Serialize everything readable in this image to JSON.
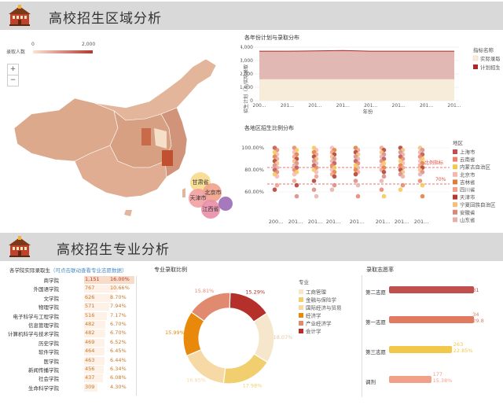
{
  "section1": {
    "title": "高校招生区域分析"
  },
  "section2": {
    "title": "高校招生专业分析"
  },
  "map": {
    "legend_label": "录取人数",
    "legend_min": "0",
    "legend_max": "2,000",
    "zoom_in": "+",
    "zoom_out": "−",
    "bubble_labels": [
      "甘肃省",
      "北京市",
      "天津市",
      "江西省"
    ]
  },
  "trend": {
    "title": "各年份计划与录取分布",
    "ylabel": "招生计划（人/实际录取",
    "xlabel": "年份",
    "legend_title": "指标名称",
    "legend": [
      "实际录取",
      "计划招生"
    ],
    "colors": {
      "actual": "#f7ecd9",
      "plan": "#a82a2a",
      "plan_fill": "#e2b8b5"
    },
    "chart_data": {
      "type": "area",
      "x": [
        "200...",
        "201...",
        "201...",
        "201...",
        "201...",
        "201...",
        "201...",
        "201..."
      ],
      "series": [
        {
          "name": "实际录取",
          "values": [
            1600,
            1600,
            1600,
            1600,
            1600,
            1600,
            1600,
            1600
          ]
        },
        {
          "name": "计划招生",
          "values": [
            3700,
            3700,
            3720,
            3750,
            3700,
            3700,
            3700,
            3700
          ]
        }
      ],
      "yticks": [
        "4,000",
        "3,000",
        "2,000",
        "1,000",
        "0"
      ],
      "ylim": [
        0,
        4000
      ]
    }
  },
  "scatter": {
    "title": "各地区招生比例分布",
    "yticks": [
      "100.00%",
      "80.00%",
      "60.00%"
    ],
    "xticks": [
      "200...",
      "201...",
      "201...",
      "201...",
      "201...",
      "201...",
      "201...",
      "201..."
    ],
    "ref_label_1": "比例指标",
    "ref_label_2": "70%",
    "legend_title": "地区",
    "legend": [
      "上海市",
      "云南省",
      "内蒙古自治区",
      "北京市",
      "吉林省",
      "四川省",
      "天津市",
      "宁夏回族自治区",
      "安徽省",
      "山东省"
    ],
    "legend_colors": [
      "#c0504d",
      "#e8826a",
      "#f2c84b",
      "#f5b7b1",
      "#e07b39",
      "#f1a08a",
      "#b03a2e",
      "#f3c07a",
      "#d98880",
      "#e6b0aa"
    ]
  },
  "rank": {
    "title": "各学院实际录取生",
    "hint": "（可点击联动查看专业志愿数据）",
    "rows": [
      {
        "name": "商学院",
        "count": "1,151",
        "pct": "16.00%",
        "share": 0.16
      },
      {
        "name": "外国语学院",
        "count": "767",
        "pct": "10.66%",
        "share": 0.1066
      },
      {
        "name": "文学院",
        "count": "626",
        "pct": "8.70%",
        "share": 0.087
      },
      {
        "name": "物理学院",
        "count": "571",
        "pct": "7.94%",
        "share": 0.0794
      },
      {
        "name": "电子科学与工程学院",
        "count": "516",
        "pct": "7.17%",
        "share": 0.0717
      },
      {
        "name": "信息管理学院",
        "count": "482",
        "pct": "6.70%",
        "share": 0.067
      },
      {
        "name": "计算机科学与技术学院",
        "count": "482",
        "pct": "6.70%",
        "share": 0.067
      },
      {
        "name": "历史学院",
        "count": "469",
        "pct": "6.52%",
        "share": 0.0652
      },
      {
        "name": "软件学院",
        "count": "464",
        "pct": "6.45%",
        "share": 0.0645
      },
      {
        "name": "医学院",
        "count": "463",
        "pct": "6.44%",
        "share": 0.0644
      },
      {
        "name": "新闻传播学院",
        "count": "456",
        "pct": "6.34%",
        "share": 0.0634
      },
      {
        "name": "社会学院",
        "count": "437",
        "pct": "6.08%",
        "share": 0.0608
      },
      {
        "name": "生命科学学院",
        "count": "309",
        "pct": "4.30%",
        "share": 0.043
      }
    ]
  },
  "donut": {
    "title": "专业录取比例",
    "legend_title": "专业",
    "chart_data": {
      "type": "pie",
      "slices": [
        {
          "name": "会计学",
          "value": 15.29,
          "label": "15.29%",
          "color": "#b5302a"
        },
        {
          "name": "工商管理",
          "value": 18.07,
          "label": "18.07%",
          "color": "#f5e6cc"
        },
        {
          "name": "金融与保险学",
          "value": 17.98,
          "label": "17.98%",
          "color": "#f2cf6e"
        },
        {
          "name": "国际经济与贸易",
          "value": 16.85,
          "label": "16.85%",
          "color": "#f6d9a4"
        },
        {
          "name": "经济学",
          "value": 15.99,
          "label": "15.99%",
          "color": "#e8890c"
        },
        {
          "name": "产业经济学",
          "value": 15.81,
          "label": "15.81%",
          "color": "#e08a70"
        }
      ]
    }
  },
  "wish": {
    "title": "录取志愿率",
    "chart_data": {
      "type": "bar",
      "categories": [
        "第二志愿",
        "第一志愿",
        "第三志愿",
        "调剂"
      ],
      "values": [
        31,
        34,
        263,
        177
      ],
      "bars": [
        {
          "cat": "第二志愿",
          "value": "31",
          "pct": "",
          "ratio": 0.95,
          "color": "#c0504d"
        },
        {
          "cat": "第一志愿",
          "value": "34",
          "pct": "29.8",
          "ratio": 0.95,
          "color": "#e07b62"
        },
        {
          "cat": "第三志愿",
          "value": "263",
          "pct": "22.85%",
          "ratio": 0.7,
          "color": "#f2c84b"
        },
        {
          "cat": "调剂",
          "value": "177",
          "pct": "15.38%",
          "ratio": 0.47,
          "color": "#f1a08a"
        }
      ]
    }
  }
}
